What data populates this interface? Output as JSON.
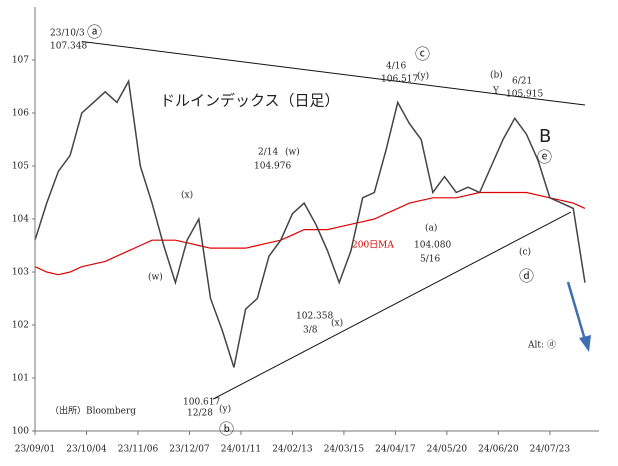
{
  "chart_data": {
    "type": "line",
    "title": "ドルインデックス（日足）",
    "source": "（出所）Bloomberg",
    "x": [
      0,
      5,
      10,
      15,
      20,
      25,
      30,
      35,
      40,
      45,
      50,
      55,
      60,
      65,
      70,
      75,
      80,
      85,
      90,
      95,
      100,
      105,
      110,
      115,
      120,
      125,
      130,
      135,
      140,
      145,
      150,
      155,
      160,
      165,
      170,
      175,
      180,
      185,
      190,
      195,
      200,
      205,
      210,
      215,
      220,
      225,
      230,
      235
    ],
    "series": [
      {
        "color": "#444444",
        "values": [
          103.6,
          104.3,
          104.9,
          105.2,
          106.0,
          106.2,
          106.4,
          106.2,
          106.6,
          105.0,
          104.3,
          103.5,
          102.8,
          103.6,
          104.0,
          102.5,
          101.9,
          101.2,
          102.3,
          102.5,
          103.3,
          103.6,
          104.1,
          104.3,
          103.9,
          103.4,
          102.8,
          103.4,
          104.4,
          104.5,
          105.3,
          106.2,
          105.8,
          105.5,
          104.5,
          104.8,
          104.5,
          104.6,
          104.5,
          105.0,
          105.5,
          105.9,
          105.6,
          105.1,
          104.4,
          104.3,
          104.2,
          102.8
        ]
      },
      {
        "name": "200日MA",
        "color": "#e00000",
        "values": [
          103.1,
          103.0,
          102.95,
          103.0,
          103.1,
          103.15,
          103.2,
          103.3,
          103.4,
          103.5,
          103.6,
          103.6,
          103.6,
          103.55,
          103.5,
          103.45,
          103.45,
          103.45,
          103.45,
          103.5,
          103.55,
          103.6,
          103.7,
          103.8,
          103.8,
          103.8,
          103.85,
          103.9,
          103.95,
          104.0,
          104.1,
          104.2,
          104.3,
          104.35,
          104.4,
          104.4,
          104.4,
          104.45,
          104.5,
          104.5,
          104.5,
          104.5,
          104.5,
          104.45,
          104.4,
          104.35,
          104.3,
          104.2
        ]
      }
    ],
    "trendlines": [
      {
        "x": [
          20,
          235
        ],
        "values": [
          107.35,
          106.15
        ]
      },
      {
        "x": [
          76,
          229
        ],
        "values": [
          100.6,
          104.13
        ]
      }
    ],
    "xlim": [
      0,
      241
    ],
    "ylim": [
      100,
      108
    ],
    "xticks": [
      {
        "value": 0,
        "label": "23/09/01"
      },
      {
        "value": 22,
        "label": "23/10/04"
      },
      {
        "value": 44,
        "label": "23/11/06"
      },
      {
        "value": 66,
        "label": "23/12/07"
      },
      {
        "value": 88,
        "label": "24/01/11"
      },
      {
        "value": 110,
        "label": "24/02/13"
      },
      {
        "value": 132,
        "label": "24/03/15"
      },
      {
        "value": 154,
        "label": "24/04/17"
      },
      {
        "value": 176,
        "label": "24/05/20"
      },
      {
        "value": 198,
        "label": "24/06/20"
      },
      {
        "value": 220,
        "label": "24/07/23"
      }
    ],
    "yticks": [
      100,
      101,
      102,
      103,
      104,
      105,
      106,
      107
    ],
    "annotations": [
      "23/10/3",
      "107.348",
      "ⓐ",
      "4/16",
      "106.517",
      "ⓒ",
      "(y)",
      "(b)",
      "Y",
      "6/21",
      "105.915",
      "B",
      "ⓔ",
      "2/14",
      "104.976",
      "(w)",
      "(x)",
      "(w)",
      "(a)",
      "104.080",
      "5/16",
      "(c)",
      "ⓓ",
      "102.358",
      "3/8",
      "(x)",
      "Alt: ⓓ",
      "100.617",
      "12/28",
      "(y)",
      "ⓑ"
    ]
  }
}
